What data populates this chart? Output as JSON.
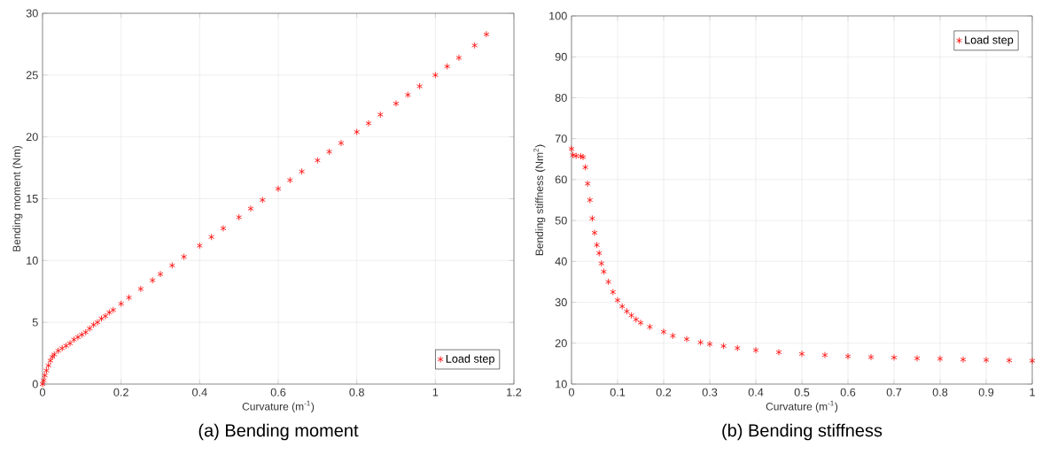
{
  "chart_data": [
    {
      "type": "scatter",
      "title": "(a) Bending moment",
      "xlabel": "Curvature (m$^{-1}$)",
      "ylabel": "Bending moment (Nm)",
      "xlim": [
        0,
        1.2
      ],
      "ylim": [
        0,
        30
      ],
      "xticks": [
        0,
        0.2,
        0.4,
        0.6,
        0.8,
        1,
        1.2
      ],
      "yticks": [
        0,
        5,
        10,
        15,
        20,
        25,
        30
      ],
      "grid": true,
      "legend": "bottom right",
      "marker": "cross",
      "series": [
        {
          "name": "Load step",
          "color": "#ff0000",
          "x": [
            0,
            0.003,
            0.006,
            0.01,
            0.015,
            0.02,
            0.025,
            0.03,
            0.04,
            0.05,
            0.06,
            0.07,
            0.08,
            0.09,
            0.1,
            0.11,
            0.12,
            0.13,
            0.14,
            0.15,
            0.16,
            0.17,
            0.18,
            0.2,
            0.22,
            0.25,
            0.28,
            0.3,
            0.33,
            0.36,
            0.4,
            0.43,
            0.46,
            0.5,
            0.53,
            0.56,
            0.6,
            0.63,
            0.66,
            0.7,
            0.73,
            0.76,
            0.8,
            0.83,
            0.86,
            0.9,
            0.93,
            0.96,
            1.0,
            1.03,
            1.06,
            1.1,
            1.13
          ],
          "values": [
            0,
            0.3,
            0.7,
            1.1,
            1.5,
            1.9,
            2.2,
            2.4,
            2.7,
            2.9,
            3.1,
            3.3,
            3.6,
            3.8,
            4.0,
            4.2,
            4.5,
            4.8,
            5.0,
            5.3,
            5.5,
            5.8,
            6.0,
            6.5,
            7.0,
            7.7,
            8.4,
            8.9,
            9.6,
            10.3,
            11.2,
            11.9,
            12.6,
            13.5,
            14.2,
            14.9,
            15.8,
            16.5,
            17.2,
            18.1,
            18.8,
            19.5,
            20.4,
            21.1,
            21.8,
            22.7,
            23.4,
            24.1,
            25.0,
            25.7,
            26.4,
            27.4,
            28.3
          ]
        }
      ]
    },
    {
      "type": "scatter",
      "title": "(b) Bending stiffness",
      "xlabel": "Curvature (m$^{-1}$)",
      "ylabel": "Bending stiffness (Nm$^{2}$)",
      "xlim": [
        0,
        1
      ],
      "ylim": [
        10,
        100
      ],
      "xticks": [
        0,
        0.1,
        0.2,
        0.3,
        0.4,
        0.5,
        0.6,
        0.7,
        0.8,
        0.9,
        1
      ],
      "yticks": [
        10,
        20,
        30,
        40,
        50,
        60,
        70,
        80,
        90,
        100
      ],
      "grid": true,
      "legend": "top right",
      "marker": "cross",
      "series": [
        {
          "name": "Load step",
          "color": "#ff0000",
          "x": [
            0,
            0.003,
            0.01,
            0.02,
            0.025,
            0.03,
            0.035,
            0.04,
            0.045,
            0.05,
            0.055,
            0.06,
            0.065,
            0.07,
            0.08,
            0.09,
            0.1,
            0.11,
            0.12,
            0.13,
            0.14,
            0.15,
            0.17,
            0.2,
            0.22,
            0.25,
            0.28,
            0.3,
            0.33,
            0.36,
            0.4,
            0.45,
            0.5,
            0.55,
            0.6,
            0.65,
            0.7,
            0.75,
            0.8,
            0.85,
            0.9,
            0.95,
            1.0
          ],
          "values": [
            67.5,
            66,
            65.8,
            65.7,
            65.5,
            63,
            59,
            55,
            50.5,
            47,
            44,
            42,
            39.5,
            37.5,
            35,
            32.5,
            30.5,
            29,
            27.8,
            26.8,
            25.8,
            25,
            24,
            22.8,
            21.8,
            21,
            20.2,
            19.8,
            19.3,
            18.8,
            18.3,
            17.8,
            17.4,
            17.1,
            16.8,
            16.6,
            16.5,
            16.3,
            16.2,
            16.0,
            15.9,
            15.8,
            15.7
          ]
        }
      ]
    }
  ]
}
